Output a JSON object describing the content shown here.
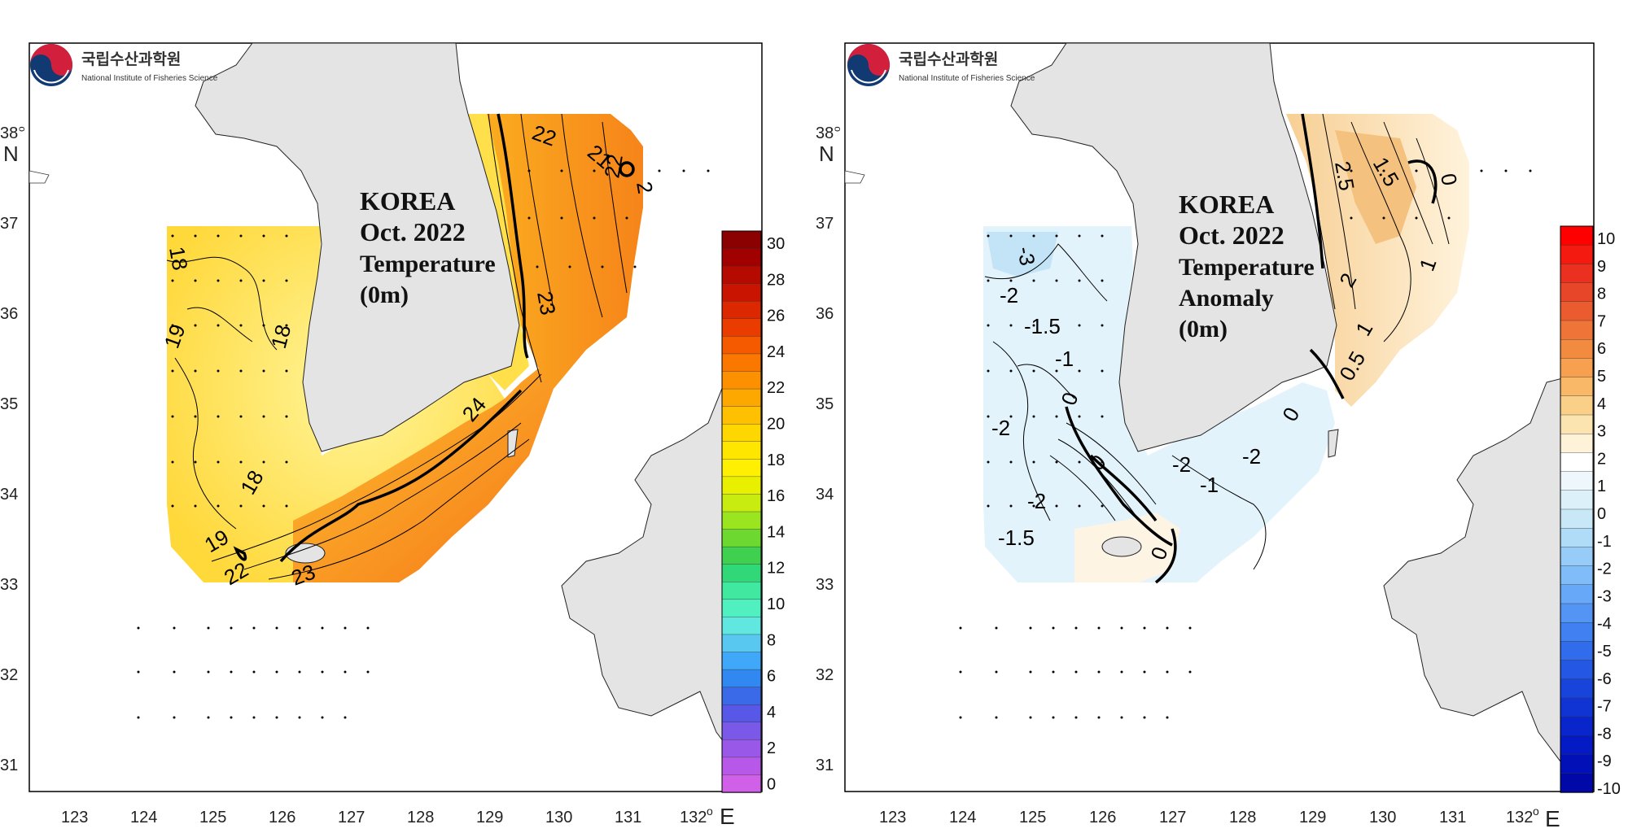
{
  "panels": [
    {
      "id": "temperature",
      "logo_ko": "국립수산과학원",
      "logo_en": "National Institute of Fisheries Science",
      "title_lines": [
        "KOREA",
        "Oct. 2022",
        "Temperature",
        "(0m)"
      ],
      "lon_ticks": [
        "123",
        "124",
        "125",
        "126",
        "127",
        "128",
        "129",
        "130",
        "131",
        "132"
      ],
      "lat_ticks": [
        "38",
        "37",
        "36",
        "35",
        "34",
        "33",
        "32",
        "31"
      ],
      "deg_symbol": "o",
      "lon_unit": "E",
      "lat_unit": "N",
      "colorbar_labels": [
        "30",
        "28",
        "26",
        "24",
        "22",
        "20",
        "18",
        "16",
        "14",
        "12",
        "10",
        "8",
        "6",
        "4",
        "2",
        "0"
      ],
      "contour_labels": [
        "18",
        "19",
        "18",
        "18",
        "19",
        "22",
        "21",
        "22",
        "23",
        "24",
        "22",
        "23",
        "2"
      ],
      "colors": [
        "#8b0000",
        "#a00000",
        "#b40a00",
        "#c81400",
        "#dc2800",
        "#eb3c00",
        "#f55a00",
        "#fa7800",
        "#fd9000",
        "#fda800",
        "#fec000",
        "#fed600",
        "#fee600",
        "#fef000",
        "#e8f000",
        "#c8ec10",
        "#9ae420",
        "#6cd830",
        "#40d050",
        "#30d878",
        "#40e8a0",
        "#50f0c0",
        "#60e8e0",
        "#58c8f0",
        "#40a8f8",
        "#3088f0",
        "#3a6ae8",
        "#5858e8",
        "#7a58e8",
        "#9a58e8",
        "#b858e8",
        "#d060e8"
      ]
    },
    {
      "id": "anomaly",
      "logo_ko": "국립수산과학원",
      "logo_en": "National Institute of Fisheries Science",
      "title_lines": [
        "KOREA",
        "Oct. 2022",
        "Temperature",
        "Anomaly",
        "(0m)"
      ],
      "lon_ticks": [
        "123",
        "124",
        "125",
        "126",
        "127",
        "128",
        "129",
        "130",
        "131",
        "132"
      ],
      "lat_ticks": [
        "38",
        "37",
        "36",
        "35",
        "34",
        "33",
        "32",
        "31"
      ],
      "deg_symbol": "o",
      "lon_unit": "E",
      "lat_unit": "N",
      "colorbar_labels": [
        "10",
        "9",
        "8",
        "7",
        "6",
        "5",
        "4",
        "3",
        "2",
        "1",
        "0",
        "-1",
        "-2",
        "-3",
        "-4",
        "-5",
        "-6",
        "-7",
        "-8",
        "-9",
        "-10"
      ],
      "contour_labels": [
        "-3",
        "-2",
        "-1.5",
        "-1",
        "-2",
        "0",
        "-2",
        "-1.5",
        "-2",
        "-1",
        "-2",
        "0",
        "0",
        "1.5",
        "2.5",
        "2",
        "1",
        "1",
        "0.5",
        "0",
        "0"
      ],
      "colors": [
        "#ff0000",
        "#f41a10",
        "#ec3020",
        "#e84628",
        "#ea5c30",
        "#ee7438",
        "#f28a40",
        "#f6a050",
        "#f8b868",
        "#fad088",
        "#fce4b0",
        "#fef2d8",
        "#ffffff",
        "#eef8fc",
        "#dcf0fa",
        "#c8e8f8",
        "#b0dcf8",
        "#98ccf8",
        "#80bcf8",
        "#68a8f8",
        "#5494f4",
        "#4080f0",
        "#306cec",
        "#2458e4",
        "#1844dc",
        "#1034d4",
        "#0826cc",
        "#041ac4",
        "#0210b8",
        "#0008a8"
      ]
    }
  ]
}
